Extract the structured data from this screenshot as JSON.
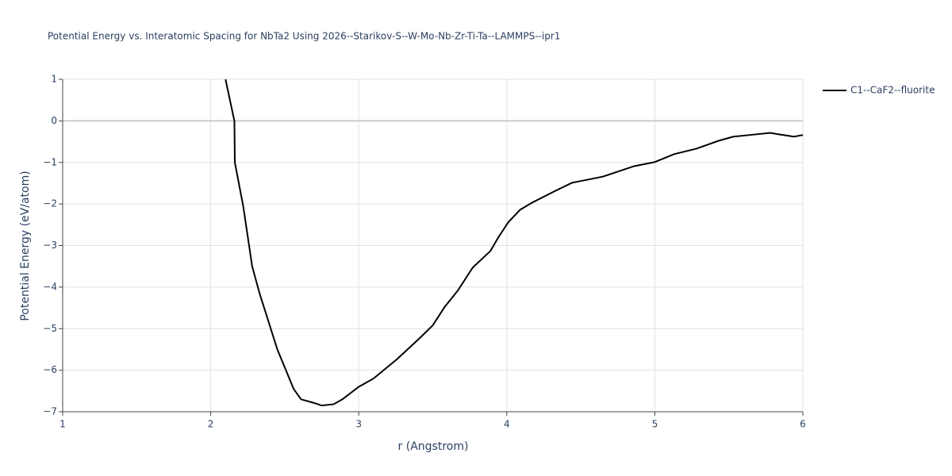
{
  "chart_data": {
    "type": "line",
    "title": "Potential Energy vs. Interatomic Spacing for NbTa2 Using 2026--Starikov-S--W-Mo-Nb-Zr-Ti-Ta--LAMMPS--ipr1",
    "x_label": "r (Angstrom)",
    "y_label": "Potential Energy (eV/atom)",
    "xlim": [
      1,
      6
    ],
    "ylim": [
      -7,
      1
    ],
    "xticks": [
      1,
      2,
      3,
      4,
      5,
      6
    ],
    "yticks": [
      1,
      0,
      {
        "value": -1,
        "label": "−1"
      },
      {
        "value": -2,
        "label": "−2"
      },
      {
        "value": -3,
        "label": "−3"
      },
      {
        "value": -4,
        "label": "−4"
      },
      {
        "value": -5,
        "label": "−5"
      },
      {
        "value": -6,
        "label": "−6"
      },
      {
        "value": -7,
        "label": "−7"
      }
    ],
    "grid": true,
    "legend": "top-right",
    "series": [
      {
        "name": "C1--CaF2--fluorite",
        "color": "#000000",
        "x": [
          2.1,
          2.16,
          2.163,
          2.22,
          2.28,
          2.33,
          2.45,
          2.56,
          2.61,
          2.69,
          2.75,
          2.83,
          2.89,
          3.0,
          3.1,
          3.26,
          3.42,
          3.5,
          3.58,
          3.67,
          3.77,
          3.89,
          3.94,
          4.01,
          4.09,
          4.17,
          4.33,
          4.44,
          4.65,
          4.86,
          5.0,
          5.13,
          5.28,
          5.43,
          5.53,
          5.64,
          5.78,
          5.83,
          5.94,
          6.0
        ],
        "values": [
          1.0,
          0,
          -1.0,
          -2.06,
          -3.5,
          -4.15,
          -5.5,
          -6.45,
          -6.7,
          -6.78,
          -6.85,
          -6.82,
          -6.7,
          -6.4,
          -6.2,
          -5.73,
          -5.2,
          -4.92,
          -4.48,
          -4.08,
          -3.53,
          -3.13,
          -2.82,
          -2.44,
          -2.14,
          -1.97,
          -1.68,
          -1.49,
          -1.34,
          -1.09,
          -0.99,
          -0.8,
          -0.67,
          -0.48,
          -0.38,
          -0.34,
          -0.29,
          -0.32,
          -0.38,
          -0.34
        ]
      }
    ]
  }
}
